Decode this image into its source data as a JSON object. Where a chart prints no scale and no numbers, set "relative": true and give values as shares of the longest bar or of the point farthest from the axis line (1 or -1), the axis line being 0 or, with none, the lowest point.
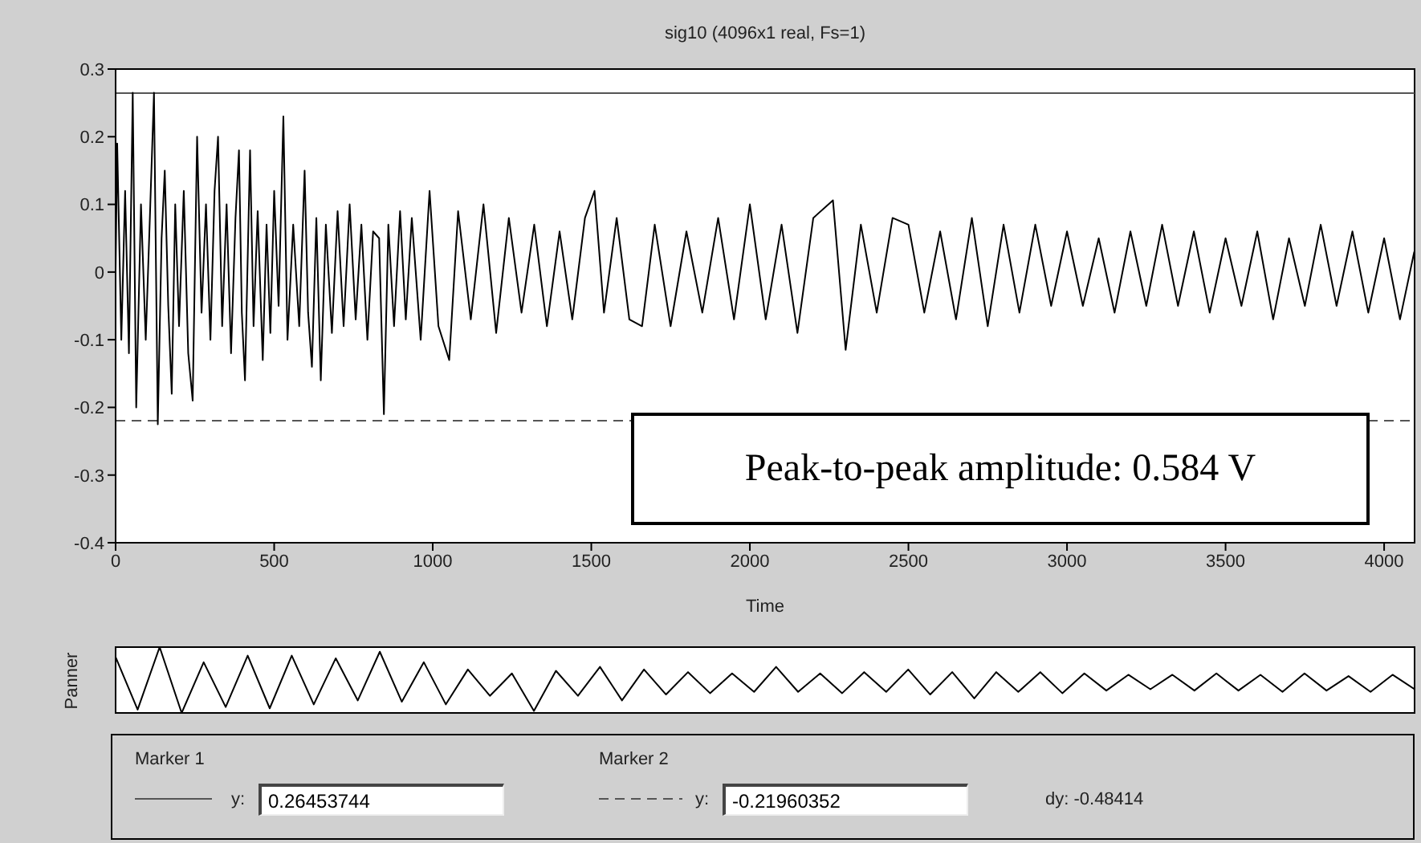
{
  "chart_data": [
    {
      "type": "line",
      "title": "sig10 (4096x1 real, Fs=1)",
      "xlabel": "Time",
      "xlim": [
        0,
        4096
      ],
      "xticks": [
        0,
        500,
        1000,
        1500,
        2000,
        2500,
        3000,
        3500,
        4000
      ],
      "ylim": [
        -0.4,
        0.3
      ],
      "yticks": [
        -0.4,
        -0.3,
        -0.2,
        -0.1,
        0,
        0.1,
        0.2,
        0.3
      ],
      "marker": "none",
      "line_style": "solid",
      "series": [
        {
          "color": "#000000",
          "x": [
            0,
            5,
            18,
            30,
            42,
            54,
            65,
            80,
            95,
            108,
            121,
            133,
            145,
            155,
            166,
            177,
            188,
            200,
            215,
            229,
            243,
            257,
            271,
            285,
            299,
            312,
            323,
            336,
            350,
            364,
            378,
            389,
            398,
            408,
            424,
            435,
            448,
            464,
            476,
            488,
            500,
            514,
            529,
            542,
            560,
            579,
            596,
            607,
            619,
            633,
            647,
            663,
            682,
            700,
            719,
            738,
            757,
            775,
            794,
            812,
            831,
            846,
            860,
            878,
            897,
            915,
            934,
            962,
            990,
            1018,
            1052,
            1080,
            1120,
            1160,
            1200,
            1240,
            1280,
            1320,
            1360,
            1400,
            1440,
            1480,
            1510,
            1540,
            1580,
            1620,
            1660,
            1700,
            1750,
            1800,
            1850,
            1900,
            1950,
            2000,
            2050,
            2100,
            2150,
            2200,
            2262,
            2302,
            2350,
            2400,
            2450,
            2500,
            2550,
            2600,
            2650,
            2700,
            2750,
            2800,
            2850,
            2900,
            2950,
            3000,
            3050,
            3100,
            3150,
            3200,
            3250,
            3300,
            3350,
            3400,
            3450,
            3500,
            3550,
            3600,
            3650,
            3700,
            3750,
            3800,
            3850,
            3900,
            3950,
            4000,
            4050,
            4095
          ],
          "values": [
            0,
            0.19,
            -0.1,
            0.12,
            -0.12,
            0.265,
            -0.2,
            0.1,
            -0.1,
            0.08,
            0.265,
            -0.225,
            0.05,
            0.15,
            -0.05,
            -0.18,
            0.1,
            -0.08,
            0.12,
            -0.12,
            -0.19,
            0.2,
            -0.06,
            0.1,
            -0.1,
            0.12,
            0.2,
            -0.08,
            0.1,
            -0.12,
            0.08,
            0.18,
            -0.06,
            -0.16,
            0.18,
            -0.08,
            0.09,
            -0.13,
            0.07,
            -0.09,
            0.12,
            -0.05,
            0.23,
            -0.1,
            0.07,
            -0.08,
            0.15,
            -0.06,
            -0.14,
            0.08,
            -0.16,
            0.07,
            -0.09,
            0.09,
            -0.08,
            0.1,
            -0.07,
            0.07,
            -0.1,
            0.06,
            0.05,
            -0.21,
            0.07,
            -0.08,
            0.09,
            -0.07,
            0.08,
            -0.1,
            0.12,
            -0.08,
            -0.13,
            0.09,
            -0.07,
            0.1,
            -0.09,
            0.08,
            -0.06,
            0.07,
            -0.08,
            0.06,
            -0.07,
            0.08,
            0.12,
            -0.06,
            0.08,
            -0.07,
            -0.08,
            0.07,
            -0.08,
            0.06,
            -0.06,
            0.08,
            -0.07,
            0.1,
            -0.07,
            0.07,
            -0.09,
            0.08,
            0.106,
            -0.115,
            0.07,
            -0.06,
            0.08,
            0.07,
            -0.06,
            0.06,
            -0.07,
            0.08,
            -0.08,
            0.07,
            -0.06,
            0.07,
            -0.05,
            0.06,
            -0.05,
            0.05,
            -0.06,
            0.06,
            -0.05,
            0.07,
            -0.05,
            0.06,
            -0.06,
            0.05,
            -0.05,
            0.06,
            -0.07,
            0.05,
            -0.05,
            0.07,
            -0.05,
            0.06,
            -0.06,
            0.05,
            -0.07,
            0.03
          ]
        }
      ],
      "ref_lines": [
        {
          "axis": "y",
          "value": 0.26453744,
          "color": "#555555",
          "line_style": "solid"
        },
        {
          "axis": "y",
          "value": -0.21960352,
          "color": "#555555",
          "line_style": "dashed"
        }
      ],
      "annotations": [
        "Peak-to-peak amplitude: 0.584 V"
      ]
    },
    {
      "type": "line",
      "ylabel": "Panner",
      "relative": true,
      "tick_labels": false,
      "marker": "none",
      "line_style": "solid",
      "categories": [
        null,
        null,
        null,
        null,
        null,
        null,
        null,
        null,
        null,
        null,
        null,
        null,
        null,
        null,
        null,
        null,
        null,
        null,
        null,
        null,
        null,
        null,
        null,
        null,
        null,
        null,
        null,
        null,
        null,
        null,
        null,
        null,
        null,
        null,
        null,
        null,
        null,
        null,
        null,
        null,
        null,
        null,
        null,
        null,
        null,
        null,
        null,
        null,
        null,
        null,
        null,
        null,
        null,
        null,
        null,
        null,
        null,
        null,
        null,
        null
      ],
      "series": [
        {
          "color": "#000000",
          "values": [
            0.85,
            0.05,
            1,
            0,
            0.77,
            0.09,
            0.87,
            0.07,
            0.87,
            0.13,
            0.83,
            0.19,
            0.93,
            0.17,
            0.77,
            0.13,
            0.66,
            0.26,
            0.6,
            0.03,
            0.64,
            0.26,
            0.7,
            0.19,
            0.66,
            0.28,
            0.62,
            0.3,
            0.6,
            0.32,
            0.7,
            0.32,
            0.6,
            0.3,
            0.62,
            0.32,
            0.66,
            0.28,
            0.62,
            0.22,
            0.62,
            0.32,
            0.62,
            0.3,
            0.6,
            0.34,
            0.58,
            0.36,
            0.58,
            0.34,
            0.6,
            0.34,
            0.58,
            0.32,
            0.6,
            0.34,
            0.56,
            0.32,
            0.58,
            0.36
          ]
        }
      ]
    },
    {
      "type": "other",
      "annotations": [
        "Marker 1",
        "y:",
        "0.26453744",
        "Marker 2",
        "y:",
        "-0.21960352",
        "dy: -0.48414"
      ]
    }
  ]
}
